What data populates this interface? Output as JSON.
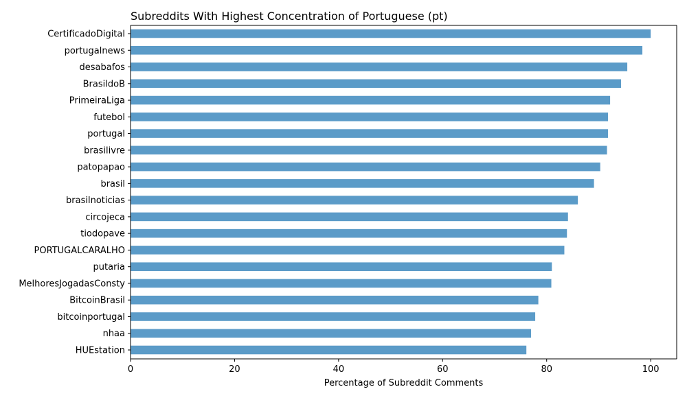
{
  "chart_data": {
    "type": "bar",
    "orientation": "horizontal",
    "title": "Subreddits With Highest Concentration of Portuguese (pt)",
    "xlabel": "Percentage of Subreddit Comments",
    "ylabel": "",
    "xlim": [
      0,
      105
    ],
    "xticks": [
      0,
      20,
      40,
      60,
      80,
      100
    ],
    "grid": false,
    "bar_color": "#5b9bc8",
    "categories": [
      "CertificadoDigital",
      "portugalnews",
      "desabafos",
      "BrasildoB",
      "PrimeiraLiga",
      "futebol",
      "portugal",
      "brasilivre",
      "patopapao",
      "brasil",
      "brasilnoticias",
      "circojeca",
      "tiodopave",
      "PORTUGALCARALHO",
      "putaria",
      "MelhoresJogadasConsty",
      "BitcoinBrasil",
      "bitcoinportugal",
      "nhaa",
      "HUEstation"
    ],
    "values": [
      100.0,
      98.4,
      95.5,
      94.3,
      92.2,
      91.8,
      91.8,
      91.6,
      90.3,
      89.1,
      86.0,
      84.1,
      83.9,
      83.4,
      81.0,
      80.9,
      78.4,
      77.8,
      77.0,
      76.1
    ]
  }
}
